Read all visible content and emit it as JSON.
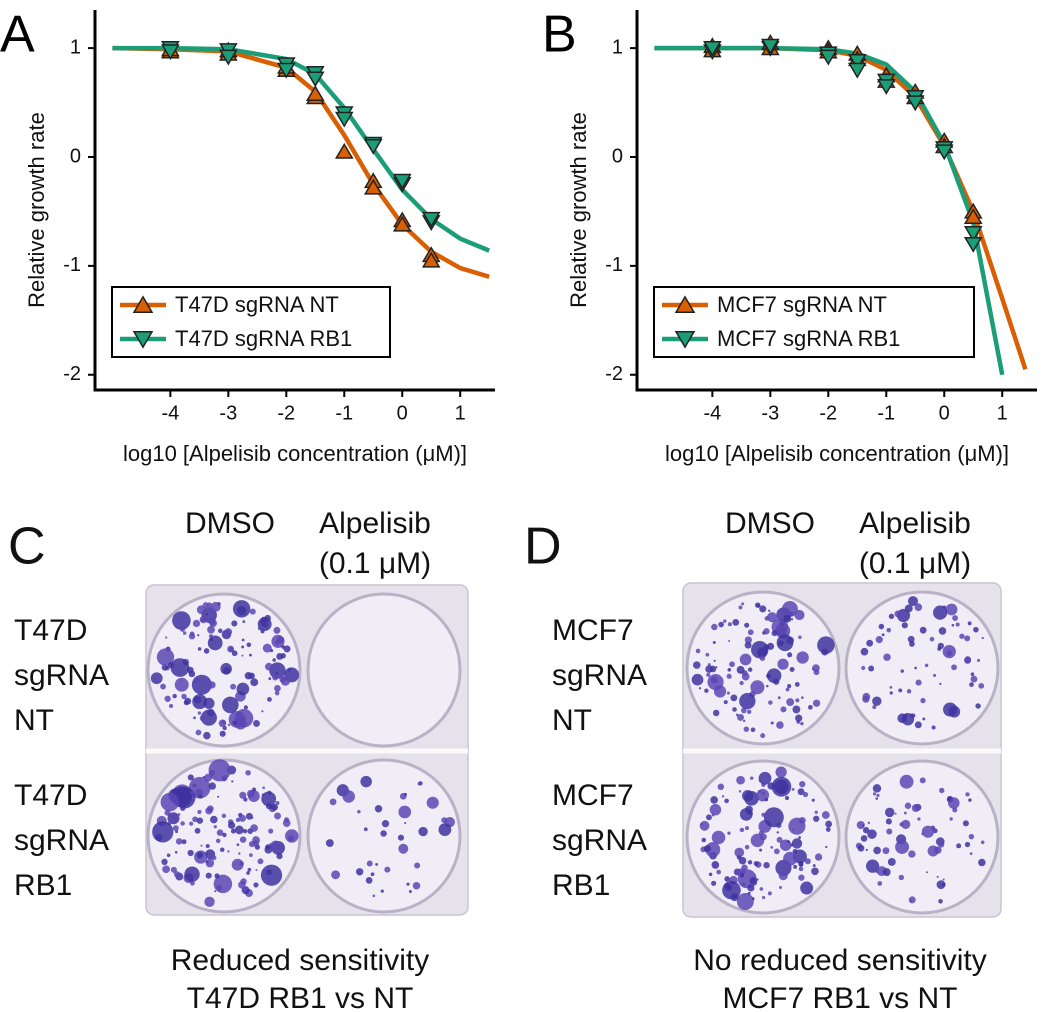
{
  "chart_data": [
    {
      "type": "scatter",
      "panel_label": "A",
      "xlabel": "log10 [Alpelisib concentration (μM)]",
      "ylabel": "Relative growth rate",
      "xlim": [
        -5.3,
        1.6
      ],
      "ylim": [
        -2.14,
        1.35
      ],
      "xticks": [
        -4,
        -3,
        -2,
        -1,
        0,
        1
      ],
      "yticks": [
        -2,
        -1,
        0,
        1
      ],
      "legend": "lower left",
      "series": [
        {
          "name": "T47D sgRNA NT",
          "color": "#d95f02",
          "marker": "triangle-up",
          "x": [
            -4,
            -4,
            -3,
            -3,
            -2,
            -2,
            -1.5,
            -1.5,
            -1,
            -0.5,
            -0.5,
            0,
            0,
            0.5,
            0.5
          ],
          "values": [
            0.97,
            0.99,
            0.95,
            0.98,
            0.8,
            0.83,
            0.55,
            0.58,
            0.05,
            -0.22,
            -0.28,
            -0.58,
            -0.62,
            -0.9,
            -0.95
          ],
          "fit_x": [
            -5,
            -4,
            -3,
            -2,
            -1.5,
            -1,
            -0.5,
            0,
            0.5,
            1,
            1.5
          ],
          "fit_values": [
            1,
            0.99,
            0.97,
            0.82,
            0.6,
            0.2,
            -0.25,
            -0.62,
            -0.87,
            -1.02,
            -1.1
          ]
        },
        {
          "name": "T47D sgRNA RB1",
          "color": "#1b9e77",
          "marker": "triangle-down",
          "x": [
            -4,
            -4,
            -3,
            -3,
            -2,
            -2,
            -1.5,
            -1.5,
            -1,
            -1,
            -0.5,
            -0.5,
            0,
            0,
            0.5,
            0.5
          ],
          "values": [
            1.0,
            0.97,
            0.98,
            0.92,
            0.85,
            0.8,
            0.77,
            0.72,
            0.4,
            0.35,
            0.12,
            0.1,
            -0.25,
            -0.22,
            -0.6,
            -0.57
          ],
          "fit_x": [
            -5,
            -4,
            -3,
            -2,
            -1.5,
            -1,
            -0.5,
            0,
            0.5,
            1,
            1.5
          ],
          "fit_values": [
            1,
            1,
            0.99,
            0.9,
            0.76,
            0.45,
            0.07,
            -0.3,
            -0.57,
            -0.75,
            -0.86
          ]
        }
      ]
    },
    {
      "type": "scatter",
      "panel_label": "B",
      "xlabel": "log10 [Alpelisib concentration (μM)]",
      "ylabel": "Relative growth rate",
      "xlim": [
        -5.3,
        1.6
      ],
      "ylim": [
        -2.14,
        1.35
      ],
      "xticks": [
        -4,
        -3,
        -2,
        -1,
        0,
        1
      ],
      "yticks": [
        -2,
        -1,
        0,
        1
      ],
      "legend": "lower left",
      "series": [
        {
          "name": "MCF7 sgRNA NT",
          "color": "#d95f02",
          "marker": "triangle-up",
          "x": [
            -4,
            -4,
            -3,
            -3,
            -2,
            -2,
            -1.5,
            -1.5,
            -1,
            -1,
            -0.5,
            -0.5,
            0,
            0,
            0.5,
            0.5
          ],
          "values": [
            1.02,
            0.98,
            1.05,
            1.0,
            1.0,
            0.97,
            0.95,
            0.9,
            0.75,
            0.7,
            0.6,
            0.55,
            0.15,
            0.1,
            -0.5,
            -0.55
          ],
          "fit_x": [
            -5,
            -4,
            -3,
            -2,
            -1.5,
            -1,
            -0.5,
            0,
            0.5,
            1,
            1.4
          ],
          "fit_values": [
            1,
            1,
            1,
            0.98,
            0.93,
            0.8,
            0.55,
            0.1,
            -0.5,
            -1.3,
            -1.95
          ]
        },
        {
          "name": "MCF7 sgRNA RB1",
          "color": "#1b9e77",
          "marker": "triangle-down",
          "x": [
            -4,
            -4,
            -3,
            -3,
            -2,
            -2,
            -1.5,
            -1.5,
            -1,
            -1,
            -0.5,
            -0.5,
            0,
            0,
            0.5,
            0.5
          ],
          "values": [
            0.97,
            1.0,
            1.0,
            1.02,
            0.95,
            0.92,
            0.88,
            0.8,
            0.7,
            0.65,
            0.55,
            0.5,
            0.08,
            0.05,
            -0.7,
            -0.8
          ],
          "fit_x": [
            -5,
            -4,
            -3,
            -2,
            -1.5,
            -1,
            -0.5,
            0,
            0.5,
            1
          ],
          "fit_values": [
            1,
            1,
            1,
            0.99,
            0.95,
            0.85,
            0.6,
            0.12,
            -0.6,
            -2
          ]
        }
      ]
    }
  ],
  "panels": [
    {
      "label": "C",
      "columns": [
        [
          "DMSO"
        ],
        [
          "Alpelisib",
          "(0.1 μM)"
        ]
      ],
      "rows": [
        [
          "T47D",
          "sgRNA",
          "NT"
        ],
        [
          "T47D",
          "sgRNA",
          "RB1"
        ]
      ],
      "caption": [
        "Reduced sensitivity",
        "T47D RB1 vs NT"
      ]
    },
    {
      "label": "D",
      "columns": [
        [
          "DMSO"
        ],
        [
          "Alpelisib",
          "(0.1 μM)"
        ]
      ],
      "rows": [
        [
          "MCF7",
          "sgRNA",
          "NT"
        ],
        [
          "MCF7",
          "sgRNA",
          "RB1"
        ]
      ],
      "caption": [
        "No reduced sensitivity",
        "MCF7 RB1 vs NT"
      ]
    }
  ]
}
